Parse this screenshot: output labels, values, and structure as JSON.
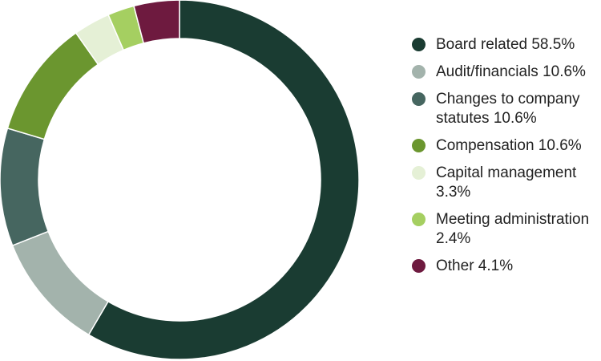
{
  "chart_data": {
    "type": "pie",
    "variant": "donut",
    "title": "",
    "start": "top",
    "direction": "clockwise",
    "legend_position": "right",
    "slices": [
      {
        "label": "Board related 58.5%",
        "value": 58.5,
        "color": "#1a3c32"
      },
      {
        "label": "Audit/financials 10.6%",
        "value": 10.6,
        "color": "#a3b3ac"
      },
      {
        "label": "Changes to company statutes 10.6%",
        "value": 10.6,
        "color": "#466660"
      },
      {
        "label": "Compensation 10.6%",
        "value": 10.6,
        "color": "#6b962f"
      },
      {
        "label": "Capital management 3.3%",
        "value": 3.3,
        "color": "#e5f0d6"
      },
      {
        "label": "Meeting administration 2.4%",
        "value": 2.4,
        "color": "#a5cf61"
      },
      {
        "label": "Other 4.1%",
        "value": 4.1,
        "color": "#6e1a3f"
      }
    ]
  }
}
